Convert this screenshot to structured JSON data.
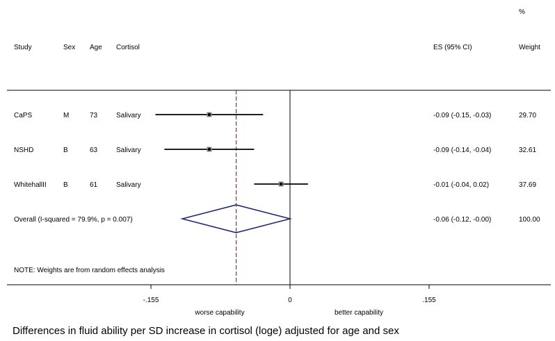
{
  "header": {
    "pct_symbol": "%",
    "study": "Study",
    "sex": "Sex",
    "age": "Age",
    "cortisol": "Cortisol",
    "es_ci": "ES (95% CI)",
    "weight": "Weight"
  },
  "note": "NOTE: Weights are from random effects analysis",
  "caption": "Differences in fluid ability per SD increase in cortisol (loge) adjusted for age and sex",
  "colors": {
    "line": "#000000",
    "diamond": "#1f2a6b",
    "overall_line": "#a52a2a",
    "marker_fill": "#888888"
  },
  "chart_data": {
    "type": "forest",
    "xlim": [
      -0.155,
      0.155
    ],
    "x_ticks": [
      {
        "value": -0.155,
        "label": "-.155"
      },
      {
        "value": 0,
        "label": "0"
      },
      {
        "value": 0.155,
        "label": ".155"
      }
    ],
    "x_annotations": {
      "left": "worse capability",
      "right": "better capability"
    },
    "null_line": 0,
    "overall_line": -0.06,
    "studies": [
      {
        "study": "CaPS",
        "sex": "M",
        "age": "73",
        "cortisol": "Salivary",
        "es": -0.09,
        "lo": -0.15,
        "hi": -0.03,
        "es_label": "-0.09 (-0.15, -0.03)",
        "weight": 29.7,
        "weight_label": "29.70"
      },
      {
        "study": "NSHD",
        "sex": "B",
        "age": "63",
        "cortisol": "Salivary",
        "es": -0.09,
        "lo": -0.14,
        "hi": -0.04,
        "es_label": "-0.09 (-0.14, -0.04)",
        "weight": 32.61,
        "weight_label": "32.61"
      },
      {
        "study": "WhitehallII",
        "sex": "B",
        "age": "61",
        "cortisol": "Salivary",
        "es": -0.01,
        "lo": -0.04,
        "hi": 0.02,
        "es_label": "-0.01 (-0.04, 0.02)",
        "weight": 37.69,
        "weight_label": "37.69"
      }
    ],
    "overall": {
      "label": "Overall  (I-squared = 79.9%, p = 0.007)",
      "es": -0.06,
      "lo": -0.12,
      "hi": -0.0,
      "es_label": "-0.06 (-0.12, -0.00)",
      "weight_label": "100.00"
    }
  }
}
